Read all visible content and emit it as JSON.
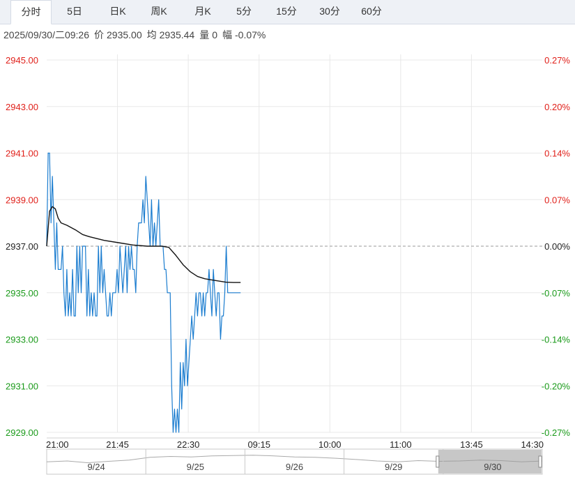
{
  "tabs": [
    {
      "label": "分时",
      "active": true
    },
    {
      "label": "5日",
      "active": false
    },
    {
      "label": "日K",
      "active": false
    },
    {
      "label": "周K",
      "active": false
    },
    {
      "label": "月K",
      "active": false
    },
    {
      "label": "5分",
      "active": false
    },
    {
      "label": "15分",
      "active": false
    },
    {
      "label": "30分",
      "active": false
    },
    {
      "label": "60分",
      "active": false
    }
  ],
  "info": {
    "datetime": "2025/09/30/二09:26",
    "price_label": "价",
    "price": "2935.00",
    "avg_label": "均",
    "avg": "2935.44",
    "volume_label": "量",
    "volume": "0",
    "change_label": "幅",
    "change": "-0.07%"
  },
  "colors": {
    "up": "#e0201a",
    "down": "#1a9a1a",
    "price_line": "#1a7ccf",
    "avg_line": "#111111",
    "grid": "#e8e8e8",
    "base": "#999999"
  },
  "chart_data": {
    "type": "line",
    "base_price": 2937.0,
    "ylim": [
      2929.0,
      2945.0
    ],
    "y_ticks_left": [
      {
        "v": 2945.0,
        "label": "2945.00",
        "tone": "up"
      },
      {
        "v": 2943.0,
        "label": "2943.00",
        "tone": "up"
      },
      {
        "v": 2941.0,
        "label": "2941.00",
        "tone": "up"
      },
      {
        "v": 2939.0,
        "label": "2939.00",
        "tone": "up"
      },
      {
        "v": 2937.0,
        "label": "2937.00",
        "tone": "flat"
      },
      {
        "v": 2935.0,
        "label": "2935.00",
        "tone": "down"
      },
      {
        "v": 2933.0,
        "label": "2933.00",
        "tone": "down"
      },
      {
        "v": 2931.0,
        "label": "2931.00",
        "tone": "down"
      },
      {
        "v": 2929.0,
        "label": "2929.00",
        "tone": "down"
      }
    ],
    "y_ticks_right": [
      {
        "v": 2945.0,
        "label": "0.27%",
        "tone": "up"
      },
      {
        "v": 2943.0,
        "label": "0.20%",
        "tone": "up"
      },
      {
        "v": 2941.0,
        "label": "0.14%",
        "tone": "up"
      },
      {
        "v": 2939.0,
        "label": "0.07%",
        "tone": "up"
      },
      {
        "v": 2937.0,
        "label": "0.00%",
        "tone": "flat"
      },
      {
        "v": 2935.0,
        "label": "-0.07%",
        "tone": "down"
      },
      {
        "v": 2933.0,
        "label": "-0.14%",
        "tone": "down"
      },
      {
        "v": 2931.0,
        "label": "-0.20%",
        "tone": "down"
      },
      {
        "v": 2929.0,
        "label": "-0.27%",
        "tone": "down"
      }
    ],
    "x_ticks": [
      "21:00",
      "21:45",
      "22:30",
      "09:15",
      "10:00",
      "11:00",
      "13:45",
      "14:30"
    ],
    "total_minutes": 345,
    "series": [
      {
        "role": "price",
        "minutes": [
          0,
          1,
          2,
          3,
          4,
          5,
          6,
          7,
          8,
          9,
          10,
          11,
          12,
          13,
          14,
          15,
          16,
          17,
          18,
          19,
          20,
          21,
          22,
          23,
          24,
          25,
          26,
          27,
          28,
          29,
          30,
          31,
          32,
          33,
          34,
          35,
          36,
          37,
          38,
          39,
          40,
          41,
          42,
          43,
          44,
          45,
          46,
          47,
          48,
          49,
          50,
          51,
          52,
          53,
          54,
          55,
          56,
          57,
          58,
          59,
          60,
          61,
          62,
          63,
          64,
          65,
          66,
          67,
          68,
          69,
          70,
          71,
          72,
          73,
          74,
          75,
          76,
          77,
          78,
          79,
          80,
          81,
          82,
          83,
          84,
          85,
          86,
          87,
          88,
          89,
          90,
          91,
          92,
          93,
          94,
          95,
          96,
          97,
          98,
          99,
          100,
          101,
          102,
          103,
          104,
          105,
          106,
          107,
          108,
          109,
          110,
          111,
          112,
          113,
          114,
          115,
          116,
          117,
          118,
          119,
          120,
          121,
          122,
          123,
          124,
          125,
          126,
          127,
          128,
          129,
          130,
          131,
          132,
          133,
          134,
          135
        ],
        "values": [
          2937,
          2941,
          2941,
          2938,
          2940,
          2938,
          2936,
          2938,
          2936,
          2936,
          2936,
          2937,
          2935,
          2934,
          2936,
          2934,
          2935,
          2934,
          2936,
          2934,
          2934,
          2937,
          2935,
          2937,
          2935,
          2937,
          2937,
          2937,
          2934,
          2936,
          2934,
          2935,
          2934,
          2935,
          2934,
          2934,
          2937,
          2935,
          2937,
          2935,
          2936,
          2935,
          2934,
          2934,
          2935,
          2934,
          2935,
          2935,
          2935,
          2936,
          2935,
          2937,
          2936,
          2935,
          2936,
          2937,
          2935,
          2937,
          2936,
          2937,
          2936,
          2936,
          2935,
          2937,
          2938,
          2938,
          2938,
          2939,
          2938,
          2940,
          2939,
          2938,
          2937,
          2939,
          2937,
          2938,
          2937,
          2938,
          2939,
          2937,
          2937,
          2937,
          2936,
          2936,
          2935,
          2935,
          2935,
          2931,
          2929,
          2930,
          2929,
          2930,
          2929,
          2932,
          2930,
          2932,
          2931,
          2933,
          2931,
          2932,
          2933,
          2934,
          2933,
          2934,
          2935,
          2934,
          2935,
          2935,
          2934,
          2935,
          2934,
          2935,
          2935,
          2936,
          2935,
          2934,
          2936,
          2935,
          2934,
          2935,
          2935,
          2933,
          2934,
          2934,
          2935,
          2937,
          2935,
          2935,
          2935,
          2935,
          2935,
          2935,
          2935,
          2935,
          2935,
          2935
        ]
      },
      {
        "role": "average",
        "minutes": [
          0,
          2,
          4,
          6,
          8,
          10,
          14,
          20,
          25,
          30,
          40,
          50,
          60,
          70,
          80,
          85,
          90,
          95,
          100,
          105,
          110,
          115,
          120,
          125,
          130,
          135
        ],
        "values": [
          2937.0,
          2938.5,
          2938.7,
          2938.6,
          2938.2,
          2938.0,
          2937.9,
          2937.7,
          2937.5,
          2937.4,
          2937.25,
          2937.15,
          2937.05,
          2937.0,
          2937.0,
          2936.95,
          2936.6,
          2936.2,
          2935.9,
          2935.7,
          2935.6,
          2935.55,
          2935.5,
          2935.45,
          2935.44,
          2935.44
        ]
      }
    ],
    "navigator": {
      "dates": [
        "9/24",
        "9/25",
        "9/26",
        "9/29",
        "9/30"
      ],
      "selected": "9/30"
    }
  }
}
